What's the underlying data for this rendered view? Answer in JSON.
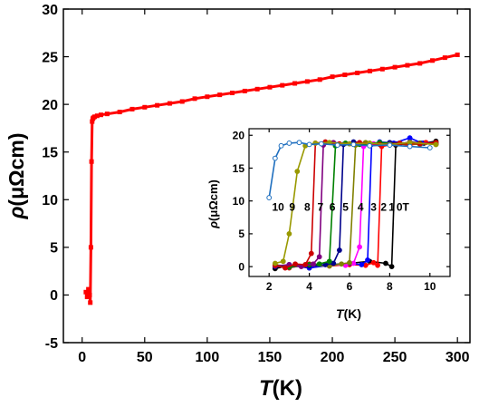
{
  "chart_data": [
    {
      "type": "line",
      "xlabel_italic": "T",
      "xlabel_unit": "(K)",
      "ylabel_italic": "ρ",
      "ylabel_unit": "(μΩcm)",
      "xlim": [
        -15,
        310
      ],
      "ylim": [
        -5,
        30
      ],
      "xticks": [
        0,
        50,
        100,
        150,
        200,
        250,
        300
      ],
      "yticks": [
        -5,
        0,
        5,
        10,
        15,
        20,
        25,
        30
      ],
      "grid": false,
      "series": [
        {
          "color": "#ff0000",
          "marker": "square",
          "x": [
            3,
            4,
            5,
            6,
            6.5,
            7,
            7.5,
            8,
            8.5,
            9,
            10,
            12,
            15,
            20,
            30,
            40,
            50,
            60,
            70,
            80,
            90,
            100,
            110,
            120,
            130,
            140,
            150,
            160,
            170,
            180,
            190,
            200,
            210,
            220,
            230,
            240,
            250,
            260,
            270,
            280,
            290,
            300
          ],
          "y": [
            0.3,
            -0.2,
            0.6,
            0.0,
            -0.8,
            5,
            14,
            18.2,
            18.5,
            18.6,
            18.7,
            18.8,
            18.9,
            19.0,
            19.2,
            19.5,
            19.7,
            19.9,
            20.1,
            20.3,
            20.6,
            20.8,
            21.0,
            21.2,
            21.4,
            21.6,
            21.8,
            22.0,
            22.2,
            22.4,
            22.6,
            22.9,
            23.1,
            23.3,
            23.5,
            23.7,
            23.9,
            24.1,
            24.3,
            24.6,
            24.9,
            25.2
          ]
        }
      ]
    },
    {
      "type": "line",
      "inset": true,
      "xlabel_italic": "T",
      "xlabel_unit": "(K)",
      "ylabel_italic": "ρ",
      "ylabel_unit": "(μΩcm)",
      "xlim": [
        1,
        11
      ],
      "ylim": [
        -1.5,
        21
      ],
      "xticks": [
        2,
        4,
        6,
        8,
        10
      ],
      "yticks": [
        0,
        5,
        10,
        15,
        20
      ],
      "grid": false,
      "field_labels": [
        "10",
        "9",
        "8",
        "7",
        "6",
        "5",
        "4",
        "3",
        "2",
        "1",
        "0T"
      ],
      "series": [
        {
          "name": "0T",
          "color": "#000000",
          "tc": 8.1,
          "x": [
            2.3,
            3.0,
            4.0,
            5.0,
            6.0,
            7.0,
            7.8,
            8.1,
            8.3,
            9.0,
            9.7,
            10.3
          ],
          "y": [
            -0.3,
            0.2,
            -0.2,
            0.3,
            0.5,
            0.8,
            0.5,
            0.0,
            18.5,
            19.0,
            18.8,
            19.1
          ]
        },
        {
          "name": "1T",
          "color": "#ff0000",
          "tc": 7.4,
          "x": [
            2.3,
            3.0,
            4.0,
            5.0,
            6.0,
            6.8,
            7.2,
            7.4,
            7.6,
            8.3,
            9.0,
            9.8,
            10.3
          ],
          "y": [
            0.2,
            -0.2,
            0.4,
            0.1,
            0.3,
            0.2,
            0.6,
            0.2,
            18.3,
            18.7,
            18.5,
            18.9,
            18.6
          ]
        },
        {
          "name": "2T",
          "color": "#0000ff",
          "tc": 7.0,
          "x": [
            2.3,
            3.0,
            4.0,
            5.0,
            6.0,
            6.6,
            6.9,
            7.1,
            7.5,
            8.2,
            9.0,
            9.6,
            10.3
          ],
          "y": [
            0.0,
            0.3,
            -0.2,
            0.2,
            0.5,
            0.3,
            1.0,
            18.6,
            19.0,
            18.8,
            19.6,
            18.8,
            18.9
          ]
        },
        {
          "name": "3T",
          "color": "#ff00ff",
          "tc": 6.6,
          "x": [
            2.3,
            3.0,
            4.0,
            5.0,
            5.8,
            6.2,
            6.5,
            6.7,
            7.2,
            8.0,
            9.0,
            10.3
          ],
          "y": [
            0.1,
            -0.1,
            0.2,
            0.3,
            0.2,
            0.5,
            3.0,
            18.3,
            18.7,
            18.6,
            18.9,
            18.7
          ]
        },
        {
          "name": "4T",
          "color": "#808000",
          "tc": 6.2,
          "x": [
            2.3,
            3.0,
            4.0,
            5.0,
            5.6,
            6.0,
            6.3,
            6.8,
            7.5,
            8.5,
            9.5,
            10.3
          ],
          "y": [
            0.3,
            0.0,
            0.2,
            0.1,
            0.4,
            0.6,
            18.5,
            18.9,
            18.7,
            18.8,
            18.6,
            18.9
          ]
        },
        {
          "name": "5T",
          "color": "#00008b",
          "tc": 5.6,
          "x": [
            2.3,
            3.0,
            4.0,
            4.8,
            5.2,
            5.5,
            5.7,
            6.2,
            7.0,
            8.0,
            9.0,
            10.3
          ],
          "y": [
            0.0,
            0.2,
            0.1,
            0.3,
            0.5,
            2.5,
            18.6,
            19.0,
            18.7,
            18.9,
            18.8,
            18.7
          ]
        },
        {
          "name": "6T",
          "color": "#008000",
          "tc": 5.2,
          "x": [
            2.3,
            3.0,
            4.0,
            4.5,
            5.0,
            5.3,
            5.8,
            6.5,
            7.5,
            8.5,
            9.5,
            10.3
          ],
          "y": [
            0.2,
            -0.1,
            0.3,
            0.4,
            0.8,
            18.4,
            18.8,
            18.6,
            18.9,
            18.7,
            18.8,
            18.6
          ]
        },
        {
          "name": "7T",
          "color": "#800080",
          "tc": 4.6,
          "x": [
            2.3,
            3.0,
            3.6,
            4.2,
            4.5,
            4.7,
            5.2,
            6.0,
            7.0,
            8.0,
            9.0,
            10.3
          ],
          "y": [
            0.1,
            0.3,
            0.0,
            0.4,
            1.5,
            18.5,
            18.9,
            18.7,
            18.8,
            18.6,
            18.9,
            18.7
          ]
        },
        {
          "name": "8T",
          "color": "#cc0000",
          "tc": 4.2,
          "x": [
            2.3,
            2.8,
            3.3,
            3.8,
            4.1,
            4.3,
            4.8,
            5.5,
            6.5,
            7.5,
            8.5,
            9.5,
            10.3
          ],
          "y": [
            0.2,
            -0.2,
            0.4,
            0.3,
            2.0,
            18.8,
            19.0,
            18.7,
            18.9,
            18.6,
            18.8,
            18.7,
            18.9
          ]
        },
        {
          "name": "9T",
          "color": "#999900",
          "tc": 3.4,
          "x": [
            2.3,
            2.7,
            3.0,
            3.4,
            3.8,
            4.3,
            5.0,
            6.0,
            7.0,
            8.0,
            9.0,
            10.3
          ],
          "y": [
            0.5,
            0.8,
            5.0,
            14.5,
            18.4,
            18.8,
            18.9,
            18.7,
            18.8,
            18.6,
            18.9,
            18.6
          ]
        },
        {
          "name": "10T",
          "color": "#1f6fbf",
          "tc": 2.4,
          "hollow": true,
          "x": [
            2.0,
            2.3,
            2.6,
            3.0,
            3.5,
            4.0,
            4.6,
            5.4,
            6.2,
            7.0,
            8.0,
            9.0,
            10.0
          ],
          "y": [
            10.5,
            16.5,
            18.4,
            18.8,
            18.9,
            18.6,
            18.7,
            18.5,
            18.6,
            18.4,
            18.5,
            18.3,
            18.1
          ]
        }
      ]
    }
  ]
}
